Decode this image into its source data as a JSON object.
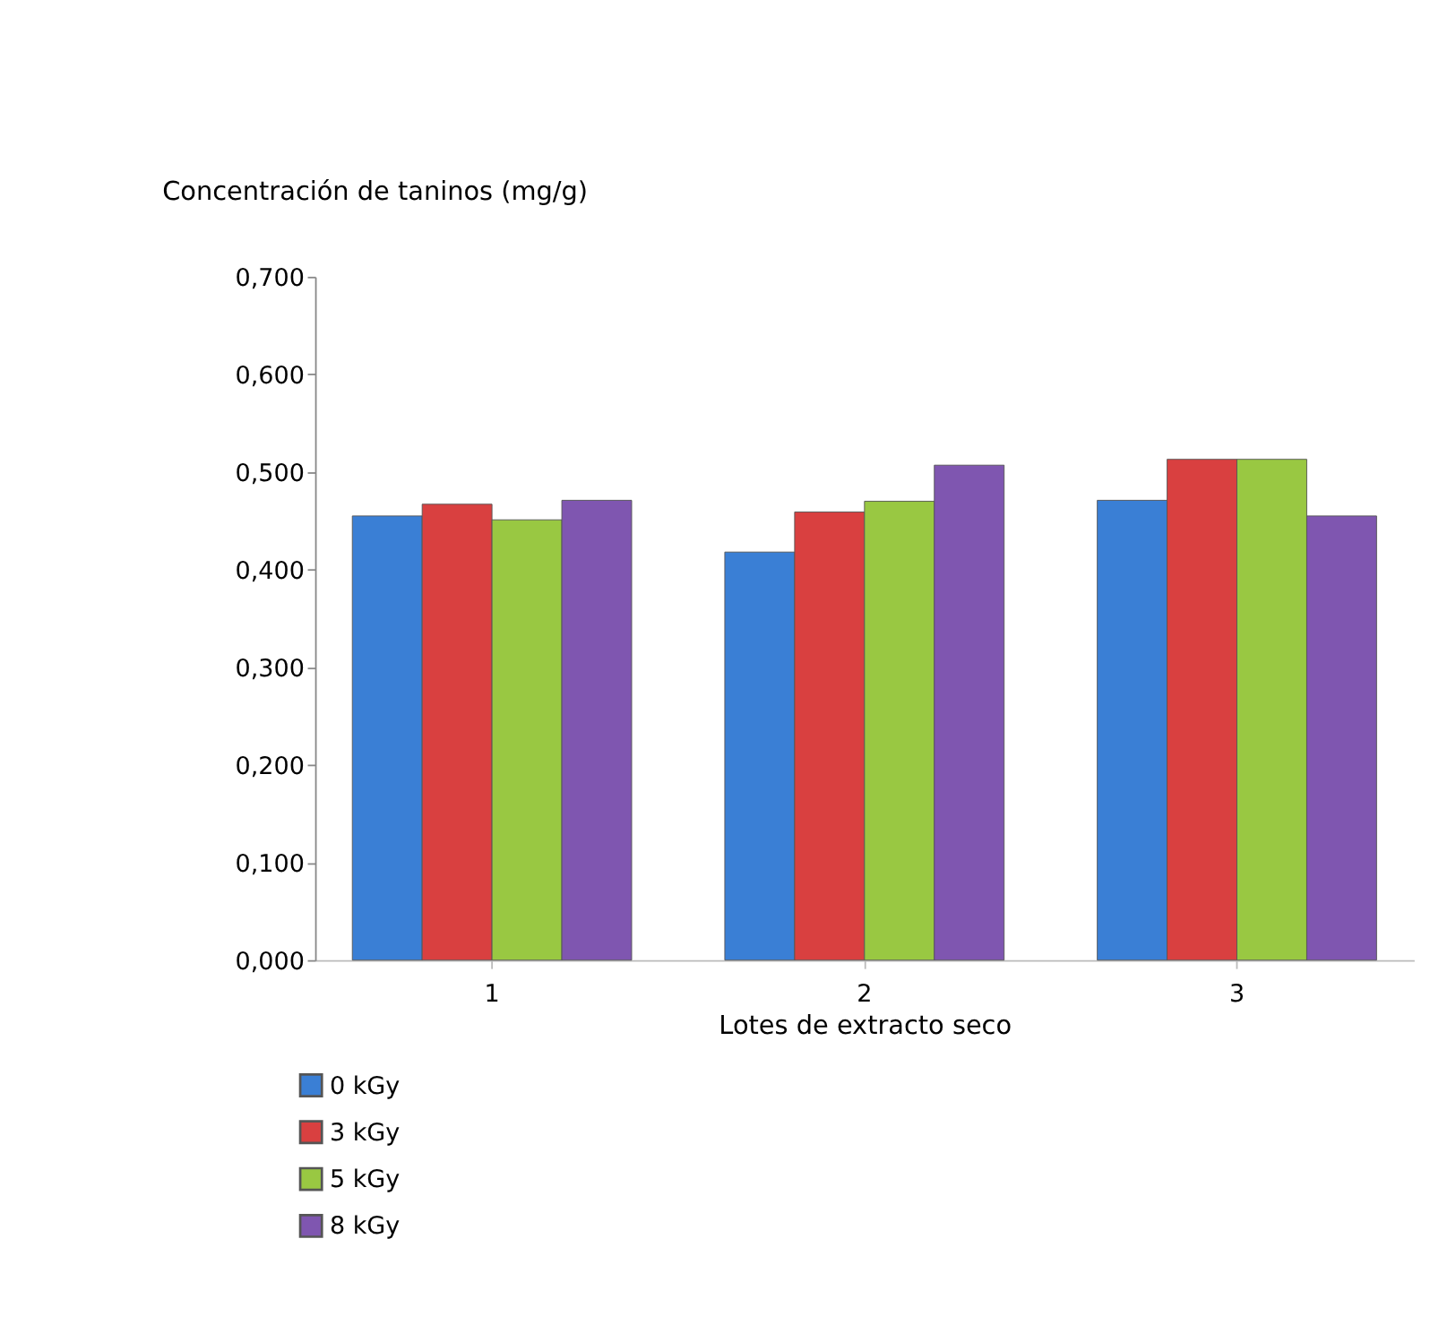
{
  "chart_data": {
    "type": "bar",
    "ylabel": "Concentración de taninos (mg/g)",
    "xlabel": "Lotes de extracto seco",
    "categories": [
      "1",
      "2",
      "3"
    ],
    "series": [
      {
        "name": "0 kGy",
        "color": "#3a7fd5",
        "values": [
          0.455,
          0.418,
          0.471
        ]
      },
      {
        "name": "3 kGy",
        "color": "#d94040",
        "values": [
          0.467,
          0.459,
          0.513
        ]
      },
      {
        "name": "5 kGy",
        "color": "#99c842",
        "values": [
          0.451,
          0.47,
          0.513
        ]
      },
      {
        "name": "8 kGy",
        "color": "#7f56b0",
        "values": [
          0.471,
          0.507,
          0.455
        ]
      }
    ],
    "ylim": [
      0,
      0.7
    ],
    "yticks": [
      {
        "value": 0,
        "label": "0,000"
      },
      {
        "value": 0.1,
        "label": "0,100"
      },
      {
        "value": 0.2,
        "label": "0,200"
      },
      {
        "value": 0.3,
        "label": "0,300"
      },
      {
        "value": 0.4,
        "label": "0,400"
      },
      {
        "value": 0.5,
        "label": "0,500"
      },
      {
        "value": 0.6,
        "label": "0,600"
      },
      {
        "value": 0.7,
        "label": "0,700"
      }
    ],
    "grid": false,
    "legend": "bottom left"
  }
}
